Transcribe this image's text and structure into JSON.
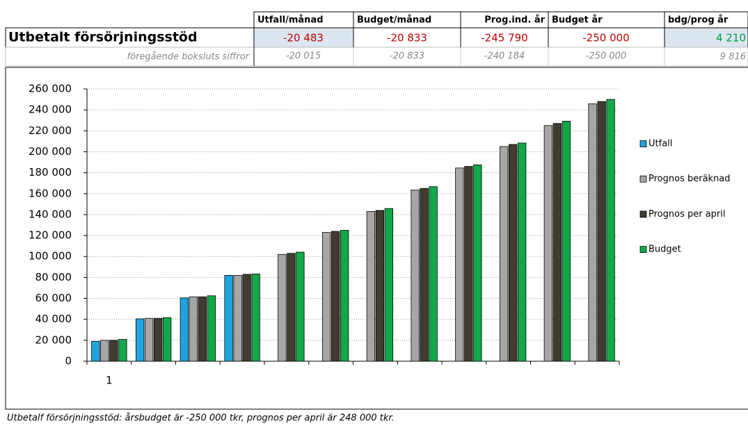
{
  "table": {
    "header": [
      "Utfall/månad",
      "Budget/månad",
      "Prog.ind. år",
      "Budget år",
      "bdg/prog år"
    ],
    "main_row": {
      "label": "Utbetalt försörjningsstöd",
      "cells": [
        "-20 483",
        "-20 833",
        "-245 790",
        "-250 000",
        "4 210"
      ]
    },
    "prev_row": {
      "label": "föregående boksluts siffror",
      "cells": [
        "-20 015",
        "-20 833",
        "-240 184",
        "-250 000",
        "9 816"
      ]
    }
  },
  "chart_data": {
    "type": "bar",
    "categories": [
      "1",
      null,
      null,
      null,
      null,
      null,
      null,
      null,
      null,
      null,
      null,
      null
    ],
    "series": [
      {
        "name": "Utfall",
        "color": "#1ea5e0",
        "values": [
          19000,
          40500,
          60500,
          82000,
          null,
          null,
          null,
          null,
          null,
          null,
          null,
          null
        ]
      },
      {
        "name": "Prognos beräknad",
        "color": "#a6a6a6",
        "values": [
          20000,
          41000,
          61500,
          82000,
          102000,
          123000,
          143000,
          163500,
          184500,
          205000,
          225000,
          245790
        ]
      },
      {
        "name": "Prognos per april",
        "color": "#403c30",
        "values": [
          20000,
          41000,
          61500,
          83000,
          103000,
          124000,
          144000,
          165000,
          186000,
          207000,
          227000,
          248000
        ]
      },
      {
        "name": "Budget",
        "color": "#12a84a",
        "values": [
          20833,
          41667,
          62500,
          83333,
          104167,
          125000,
          145833,
          166667,
          187500,
          208333,
          229167,
          250000
        ]
      }
    ],
    "ylim": [
      0,
      260000
    ],
    "yticks": [
      0,
      {
        "value": 20000,
        "label": "20 000"
      },
      {
        "value": 40000,
        "label": "40 000"
      },
      {
        "value": 60000,
        "label": "60 000"
      },
      {
        "value": 80000,
        "label": "80 000"
      },
      {
        "value": 100000,
        "label": "100 000"
      },
      {
        "value": 120000,
        "label": "120 000"
      },
      {
        "value": 140000,
        "label": "140 000"
      },
      {
        "value": 160000,
        "label": "160 000"
      },
      {
        "value": 180000,
        "label": "180 000"
      },
      {
        "value": 200000,
        "label": "200 000"
      },
      {
        "value": 220000,
        "label": "220 000"
      },
      {
        "value": 240000,
        "label": "240 000"
      },
      {
        "value": 260000,
        "label": "260 000"
      }
    ],
    "grid": true,
    "legend": "right"
  },
  "footer": "Utbetalf försörjningsstöd: årsbudget är -250 000 tkr, prognos per april är 248 000 tkr."
}
